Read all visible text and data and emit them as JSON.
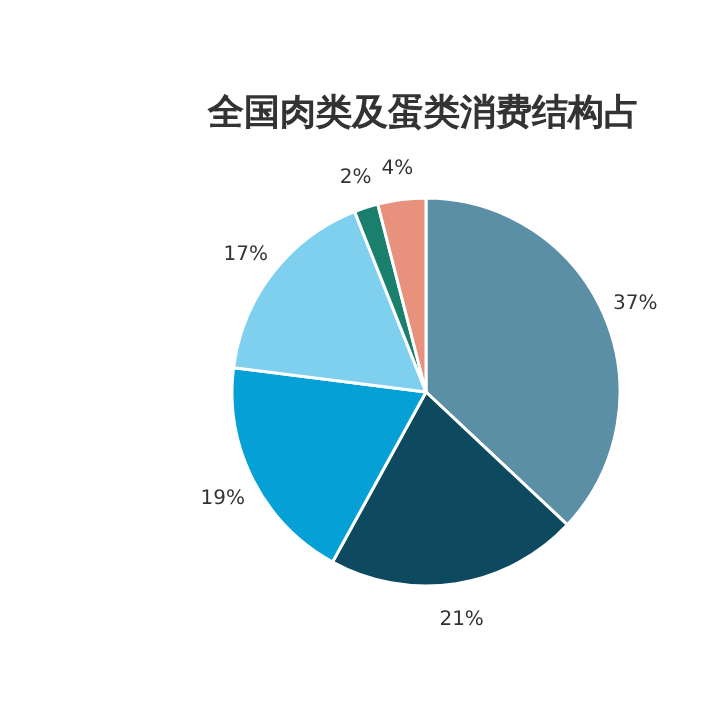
{
  "chart_data": {
    "type": "pie",
    "title": "全国肉类及蛋类消费结构占",
    "categories": [
      null,
      null,
      null,
      null,
      null,
      null
    ],
    "values": [
      37,
      21,
      19,
      17,
      2,
      4
    ],
    "colors": [
      "#5a8fa6",
      "#0e4a5f",
      "#05a0d6",
      "#7fd0ef",
      "#1b7f6e",
      "#e8917c"
    ],
    "value_labels": [
      "37%",
      "21%",
      "19%",
      "17%",
      "2%",
      "4%"
    ]
  }
}
